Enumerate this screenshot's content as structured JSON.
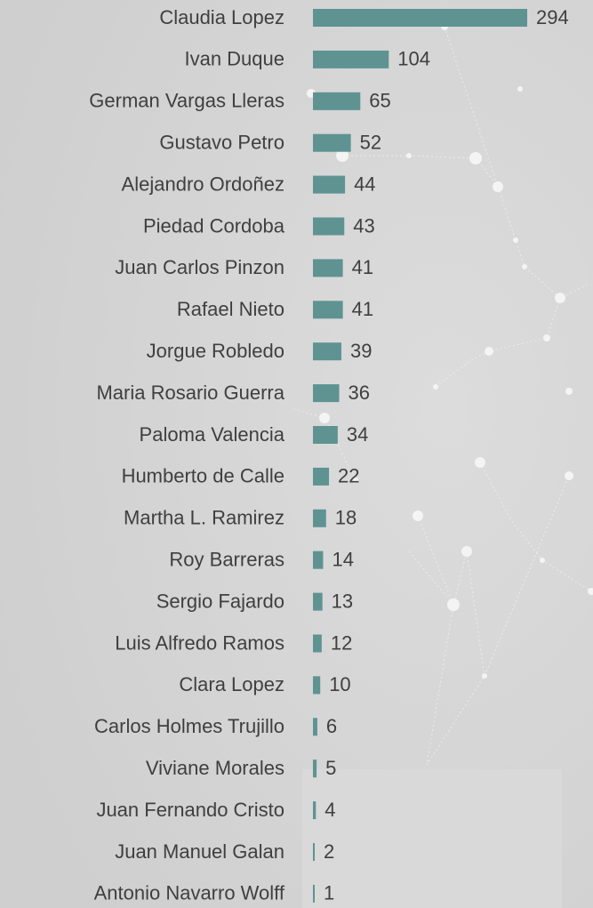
{
  "chart_data": {
    "type": "bar",
    "orientation": "horizontal",
    "color": "#5e9392",
    "categories": [
      "Claudia Lopez",
      "Ivan Duque",
      "German Vargas Lleras",
      "Gustavo Petro",
      "Alejandro Ordoñez",
      "Piedad Cordoba",
      "Juan Carlos Pinzon",
      "Rafael Nieto",
      "Jorgue Robledo",
      "Maria Rosario Guerra",
      "Paloma Valencia",
      "Humberto de Calle",
      "Martha L. Ramirez",
      "Roy Barreras",
      "Sergio Fajardo",
      "Luis Alfredo Ramos",
      "Clara Lopez",
      "Carlos Holmes Trujillo",
      "Viviane Morales",
      "Juan Fernando Cristo",
      "Juan Manuel Galan",
      "Antonio Navarro Wolff"
    ],
    "values": [
      294,
      104,
      65,
      52,
      44,
      43,
      41,
      41,
      39,
      36,
      34,
      22,
      18,
      14,
      13,
      12,
      10,
      6,
      5,
      4,
      2,
      1
    ]
  }
}
